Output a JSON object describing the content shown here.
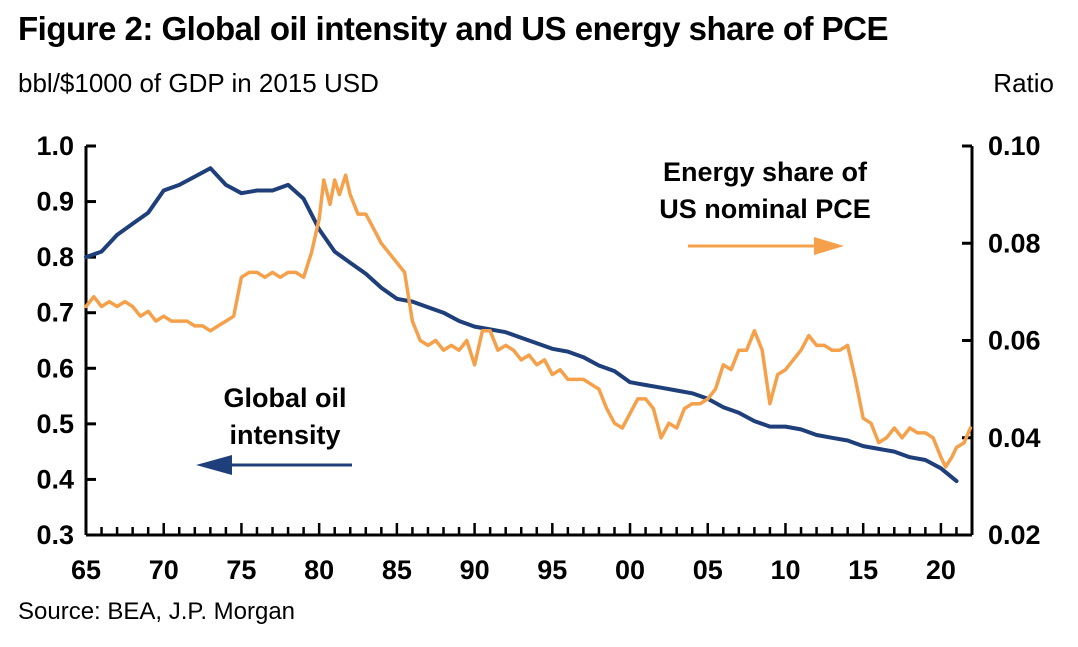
{
  "title": "Figure 2: Global oil intensity and US energy share of PCE",
  "left_axis_title": "bbl/$1000 of GDP in 2015 USD",
  "right_axis_title": "Ratio",
  "source": "Source: BEA, J.P. Morgan",
  "colors": {
    "oil_intensity": "#1f3f7a",
    "energy_share": "#f5a04a",
    "axis": "#000000"
  },
  "chart_data": {
    "type": "line",
    "title": "Figure 2: Global oil intensity and US energy share of PCE",
    "x_range": [
      1965,
      2022
    ],
    "x_tick_values": [
      1965,
      1970,
      1975,
      1980,
      1985,
      1990,
      1995,
      2000,
      2005,
      2010,
      2015,
      2020
    ],
    "x_tick_labels": [
      "65",
      "70",
      "75",
      "80",
      "85",
      "90",
      "95",
      "00",
      "05",
      "10",
      "15",
      "20"
    ],
    "left_axis": {
      "label": "bbl/$1000 of GDP in 2015 USD",
      "ylim": [
        0.3,
        1.0
      ],
      "ticks": [
        1.0,
        0.9,
        0.8,
        0.7,
        0.6,
        0.5,
        0.4,
        0.3
      ],
      "tick_labels": [
        "1.0",
        "0.9",
        "0.8",
        "0.7",
        "0.6",
        "0.5",
        "0.4",
        "0.3"
      ]
    },
    "right_axis": {
      "label": "Ratio",
      "ylim": [
        0.02,
        0.1
      ],
      "ticks": [
        0.1,
        0.08,
        0.06,
        0.04,
        0.02
      ],
      "tick_labels": [
        "0.10",
        "0.08",
        "0.06",
        "0.04",
        "0.02"
      ]
    },
    "annotations": [
      {
        "lines": [
          "Energy share of",
          "US nominal PCE"
        ],
        "arrow": "right",
        "series": "energy_share"
      },
      {
        "lines": [
          "Global oil",
          "intensity"
        ],
        "arrow": "left",
        "series": "oil_intensity"
      }
    ],
    "series": [
      {
        "name": "Global oil intensity",
        "id": "oil_intensity",
        "axis": "left",
        "x": [
          1965,
          1966,
          1967,
          1968,
          1969,
          1970,
          1971,
          1972,
          1973,
          1974,
          1975,
          1976,
          1977,
          1978,
          1979,
          1980,
          1981,
          1982,
          1983,
          1984,
          1985,
          1986,
          1987,
          1988,
          1989,
          1990,
          1991,
          1992,
          1993,
          1994,
          1995,
          1996,
          1997,
          1998,
          1999,
          2000,
          2001,
          2002,
          2003,
          2004,
          2005,
          2006,
          2007,
          2008,
          2009,
          2010,
          2011,
          2012,
          2013,
          2014,
          2015,
          2016,
          2017,
          2018,
          2019,
          2020,
          2021
        ],
        "values": [
          0.8,
          0.81,
          0.84,
          0.86,
          0.88,
          0.92,
          0.93,
          0.945,
          0.96,
          0.93,
          0.915,
          0.92,
          0.92,
          0.93,
          0.905,
          0.85,
          0.81,
          0.79,
          0.77,
          0.745,
          0.725,
          0.72,
          0.71,
          0.7,
          0.685,
          0.675,
          0.67,
          0.665,
          0.655,
          0.645,
          0.635,
          0.63,
          0.62,
          0.605,
          0.595,
          0.575,
          0.57,
          0.565,
          0.56,
          0.555,
          0.545,
          0.53,
          0.52,
          0.505,
          0.495,
          0.495,
          0.49,
          0.48,
          0.475,
          0.47,
          0.46,
          0.455,
          0.45,
          0.44,
          0.435,
          0.42,
          0.397
        ]
      },
      {
        "name": "Energy share of US nominal PCE",
        "id": "energy_share",
        "axis": "right",
        "x": [
          1965.0,
          1965.5,
          1966.0,
          1966.5,
          1967.0,
          1967.5,
          1968.0,
          1968.5,
          1969.0,
          1969.5,
          1970.0,
          1970.5,
          1971.0,
          1971.5,
          1972.0,
          1972.5,
          1973.0,
          1973.5,
          1974.0,
          1974.5,
          1975.0,
          1975.5,
          1976.0,
          1976.5,
          1977.0,
          1977.5,
          1978.0,
          1978.5,
          1979.0,
          1979.5,
          1980.0,
          1980.3,
          1980.7,
          1981.0,
          1981.3,
          1981.7,
          1982.0,
          1982.5,
          1983.0,
          1983.5,
          1984.0,
          1984.5,
          1985.0,
          1985.5,
          1986.0,
          1986.5,
          1987.0,
          1987.5,
          1988.0,
          1988.5,
          1989.0,
          1989.5,
          1990.0,
          1990.5,
          1991.0,
          1991.5,
          1992.0,
          1992.5,
          1993.0,
          1993.5,
          1994.0,
          1994.5,
          1995.0,
          1995.5,
          1996.0,
          1996.5,
          1997.0,
          1997.5,
          1998.0,
          1998.5,
          1999.0,
          1999.5,
          2000.0,
          2000.5,
          2001.0,
          2001.5,
          2002.0,
          2002.5,
          2003.0,
          2003.5,
          2004.0,
          2004.5,
          2005.0,
          2005.5,
          2006.0,
          2006.5,
          2007.0,
          2007.5,
          2008.0,
          2008.5,
          2009.0,
          2009.5,
          2010.0,
          2010.5,
          2011.0,
          2011.5,
          2012.0,
          2012.5,
          2013.0,
          2013.5,
          2014.0,
          2014.5,
          2015.0,
          2015.5,
          2016.0,
          2016.5,
          2017.0,
          2017.5,
          2018.0,
          2018.5,
          2019.0,
          2019.5,
          2020.0,
          2020.3,
          2020.7,
          2021.0,
          2021.5,
          2021.9
        ],
        "values": [
          0.067,
          0.069,
          0.067,
          0.068,
          0.067,
          0.068,
          0.067,
          0.065,
          0.066,
          0.064,
          0.065,
          0.064,
          0.064,
          0.064,
          0.063,
          0.063,
          0.062,
          0.063,
          0.064,
          0.065,
          0.073,
          0.074,
          0.074,
          0.073,
          0.074,
          0.073,
          0.074,
          0.074,
          0.073,
          0.078,
          0.085,
          0.093,
          0.088,
          0.093,
          0.09,
          0.094,
          0.09,
          0.086,
          0.086,
          0.083,
          0.08,
          0.078,
          0.076,
          0.074,
          0.064,
          0.06,
          0.059,
          0.06,
          0.058,
          0.059,
          0.058,
          0.06,
          0.055,
          0.062,
          0.062,
          0.058,
          0.059,
          0.058,
          0.056,
          0.057,
          0.055,
          0.056,
          0.053,
          0.054,
          0.052,
          0.052,
          0.052,
          0.051,
          0.05,
          0.046,
          0.043,
          0.042,
          0.045,
          0.048,
          0.048,
          0.046,
          0.04,
          0.043,
          0.042,
          0.046,
          0.047,
          0.047,
          0.048,
          0.05,
          0.055,
          0.054,
          0.058,
          0.058,
          0.062,
          0.058,
          0.047,
          0.053,
          0.054,
          0.056,
          0.058,
          0.061,
          0.059,
          0.059,
          0.058,
          0.058,
          0.059,
          0.052,
          0.044,
          0.043,
          0.039,
          0.04,
          0.042,
          0.04,
          0.042,
          0.041,
          0.041,
          0.04,
          0.036,
          0.034,
          0.036,
          0.038,
          0.039,
          0.042
        ]
      }
    ]
  }
}
